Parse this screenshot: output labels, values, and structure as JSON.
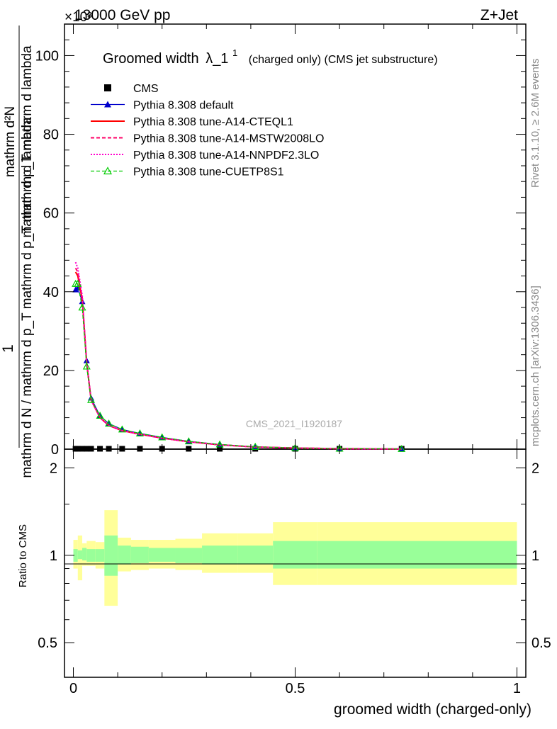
{
  "header": {
    "left": "13000 GeV pp",
    "right": "Z+Jet",
    "exponent": "×10³"
  },
  "side_text": {
    "rivet": "Rivet 3.1.10, ≥ 2.6M events",
    "mcplots": "mcplots.cern.ch [arXiv:1306.3436]"
  },
  "watermark": "CMS_2021_I1920187",
  "colors": {
    "cms": "#000000",
    "default": "#0000cc",
    "a14_cteql1": "#ff0000",
    "a14_mstw": "#ff0066",
    "a14_nnpdf": "#ff00cc",
    "cuetp8s1": "#00cc00",
    "band_inner": "#99ff99",
    "band_outer": "#ffff99"
  },
  "chart_data": [
    {
      "type": "line",
      "title_main": "Groomed width",
      "title_lambda": "λ_1",
      "title_sup": "1",
      "title_rest": "(charged only) (CMS jet substructure)",
      "ylabel_top": "1",
      "ylabel_num": "mathrm d²N",
      "ylabel_num_line2": "mathrm d p_T mathrm d lambda",
      "ylabel_den": "mathrm d N / mathrm d p_T mathrm d p_T mathrm d lambda",
      "xlim": [
        -0.02,
        1.02
      ],
      "ylim": [
        0,
        108
      ],
      "y_scale_note": "×10³",
      "yticks": [
        0,
        20,
        40,
        60,
        80,
        100
      ],
      "x": [
        0.005,
        0.01,
        0.02,
        0.03,
        0.04,
        0.06,
        0.08,
        0.11,
        0.15,
        0.2,
        0.26,
        0.33,
        0.41,
        0.5,
        0.6,
        0.74
      ],
      "x_bins": [
        [
          0,
          0.01
        ],
        [
          0.01,
          0.02
        ],
        [
          0.02,
          0.03
        ],
        [
          0.03,
          0.04
        ],
        [
          0.04,
          0.05
        ],
        [
          0.05,
          0.07
        ],
        [
          0.07,
          0.1
        ],
        [
          0.1,
          0.13
        ],
        [
          0.13,
          0.17
        ],
        [
          0.17,
          0.23
        ],
        [
          0.23,
          0.29
        ],
        [
          0.29,
          0.37
        ],
        [
          0.37,
          0.45
        ],
        [
          0.45,
          0.55
        ],
        [
          0.55,
          0.65
        ],
        [
          0.65,
          1.0
        ]
      ],
      "series": [
        {
          "name": "CMS",
          "style": "square",
          "values": [
            0.1,
            0.1,
            0.1,
            0.1,
            0.1,
            0.1,
            0.1,
            0.1,
            0.1,
            0.1,
            0.1,
            0.1,
            0.1,
            0.1,
            0.1,
            0.1
          ]
        },
        {
          "name": "Pythia 8.308 default",
          "style": "triangle",
          "values": [
            40.5,
            41.0,
            37.5,
            22.5,
            13.0,
            8.5,
            6.5,
            5.0,
            4.0,
            3.0,
            2.0,
            1.2,
            0.6,
            0.3,
            0.15,
            0.05
          ]
        },
        {
          "name": "Pythia 8.308 tune-A14-CTEQL1",
          "style": "solid",
          "values": [
            45.0,
            44.0,
            38.0,
            22.0,
            12.5,
            8.0,
            6.0,
            4.7,
            3.8,
            2.8,
            1.9,
            1.1,
            0.55,
            0.28,
            0.13,
            0.05
          ]
        },
        {
          "name": "Pythia 8.308 tune-A14-MSTW2008LO",
          "style": "dashed",
          "values": [
            46.0,
            45.0,
            38.5,
            22.0,
            12.5,
            8.0,
            6.0,
            4.7,
            3.8,
            2.8,
            1.9,
            1.1,
            0.55,
            0.28,
            0.13,
            0.05
          ]
        },
        {
          "name": "Pythia 8.308 tune-A14-NNPDF2.3LO",
          "style": "dotted",
          "values": [
            47.5,
            46.0,
            39.0,
            22.0,
            12.5,
            8.0,
            6.0,
            4.7,
            3.8,
            2.8,
            1.9,
            1.1,
            0.55,
            0.28,
            0.13,
            0.05
          ]
        },
        {
          "name": "Pythia 8.308 tune-CUETP8S1",
          "style": "dashed-triangle",
          "values": [
            42.0,
            42.0,
            36.0,
            21.0,
            12.5,
            8.5,
            6.5,
            5.0,
            4.0,
            3.0,
            2.0,
            1.2,
            0.6,
            0.3,
            0.15,
            0.05
          ]
        }
      ]
    },
    {
      "type": "area",
      "ylabel": "Ratio to CMS",
      "xlabel": "groomed width (charged-only)",
      "xlim": [
        -0.02,
        1.02
      ],
      "ylim": [
        0.38,
        2.32
      ],
      "yticks": [
        0.5,
        1,
        2
      ],
      "xticks": [
        0,
        0.5,
        1
      ],
      "bins": [
        0,
        0.01,
        0.02,
        0.03,
        0.05,
        0.07,
        0.1,
        0.13,
        0.17,
        0.23,
        0.29,
        0.37,
        0.45,
        0.55,
        1.0
      ],
      "inner_lo": [
        0.95,
        0.97,
        0.96,
        0.95,
        0.95,
        0.85,
        0.93,
        0.94,
        0.95,
        0.94,
        0.93,
        0.93,
        0.9,
        0.9
      ],
      "inner_hi": [
        1.05,
        1.04,
        1.06,
        1.05,
        1.05,
        1.17,
        1.08,
        1.07,
        1.06,
        1.06,
        1.08,
        1.08,
        1.12,
        1.12
      ],
      "outer_lo": [
        0.9,
        0.82,
        0.92,
        0.92,
        0.9,
        0.67,
        0.88,
        0.89,
        0.9,
        0.89,
        0.87,
        0.87,
        0.79,
        0.79
      ],
      "outer_hi": [
        1.13,
        1.17,
        1.1,
        1.12,
        1.11,
        1.43,
        1.15,
        1.13,
        1.13,
        1.14,
        1.19,
        1.19,
        1.3,
        1.3
      ]
    }
  ]
}
